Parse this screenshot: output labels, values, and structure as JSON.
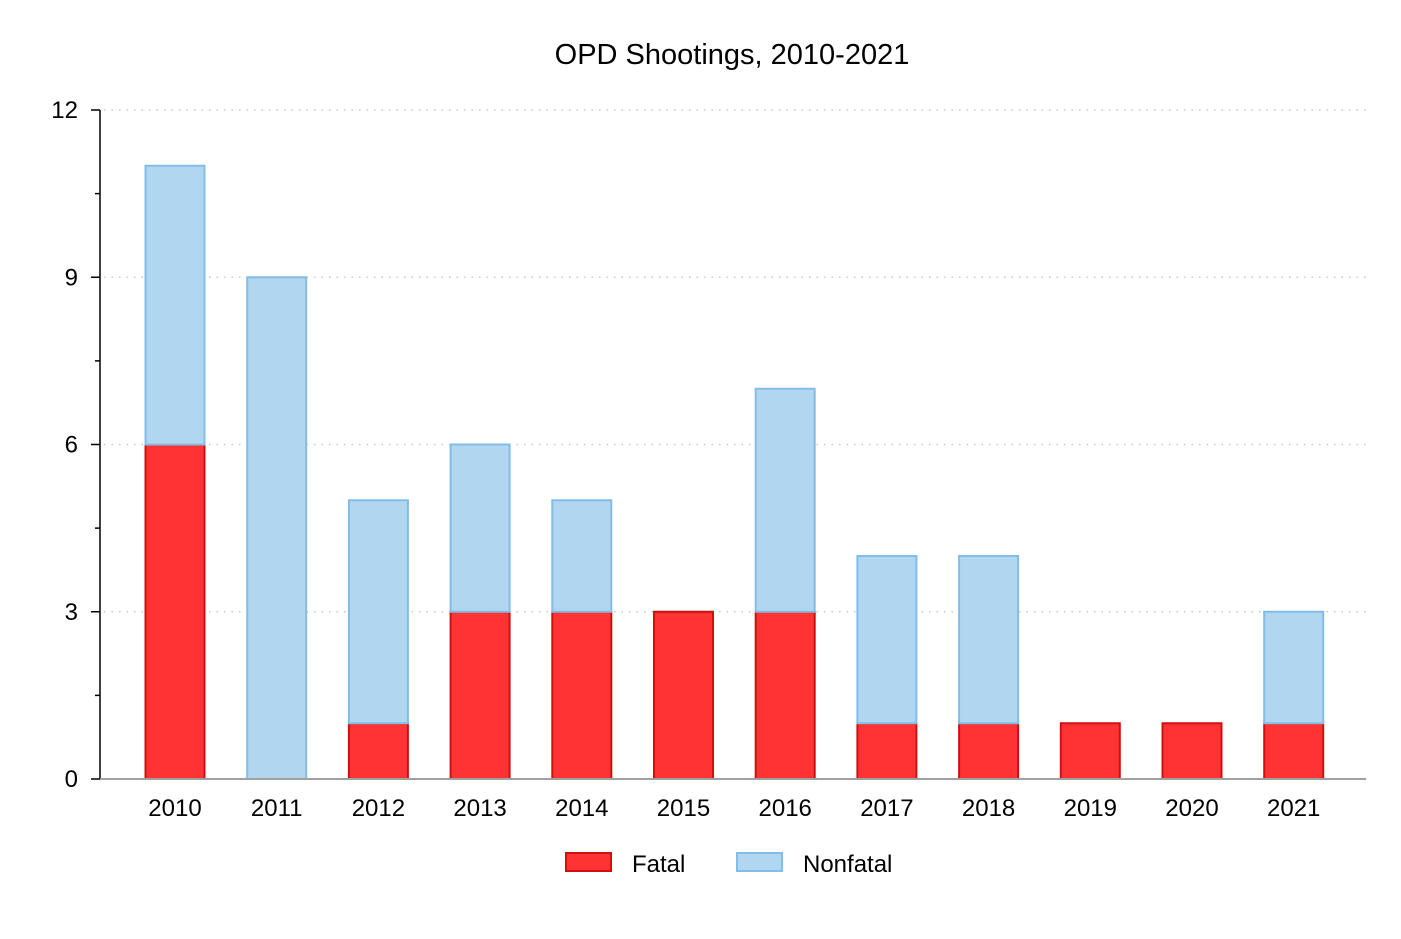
{
  "chart_data": {
    "type": "bar",
    "stacked": true,
    "title": "OPD Shootings, 2010-2021",
    "xlabel": "",
    "ylabel": "",
    "categories": [
      "2010",
      "2011",
      "2012",
      "2013",
      "2014",
      "2015",
      "2016",
      "2017",
      "2018",
      "2019",
      "2020",
      "2021"
    ],
    "series": [
      {
        "name": "Fatal",
        "color": "#ff3333",
        "stroke": "#d01010",
        "values": [
          6,
          0,
          1,
          3,
          3,
          3,
          3,
          1,
          1,
          1,
          1,
          1
        ]
      },
      {
        "name": "Nonfatal",
        "color": "#b0d6f0",
        "stroke": "#82bde8",
        "values": [
          5,
          9,
          4,
          3,
          2,
          0,
          4,
          3,
          3,
          0,
          0,
          2
        ]
      }
    ],
    "ylim": [
      0,
      12
    ],
    "yticks": [
      0,
      3,
      6,
      9,
      12
    ],
    "yticks_labels": [
      "0",
      "3",
      "6",
      "9",
      "12"
    ],
    "grid": true,
    "grid_style": "dotted horizontal",
    "legend_position": "bottom"
  }
}
